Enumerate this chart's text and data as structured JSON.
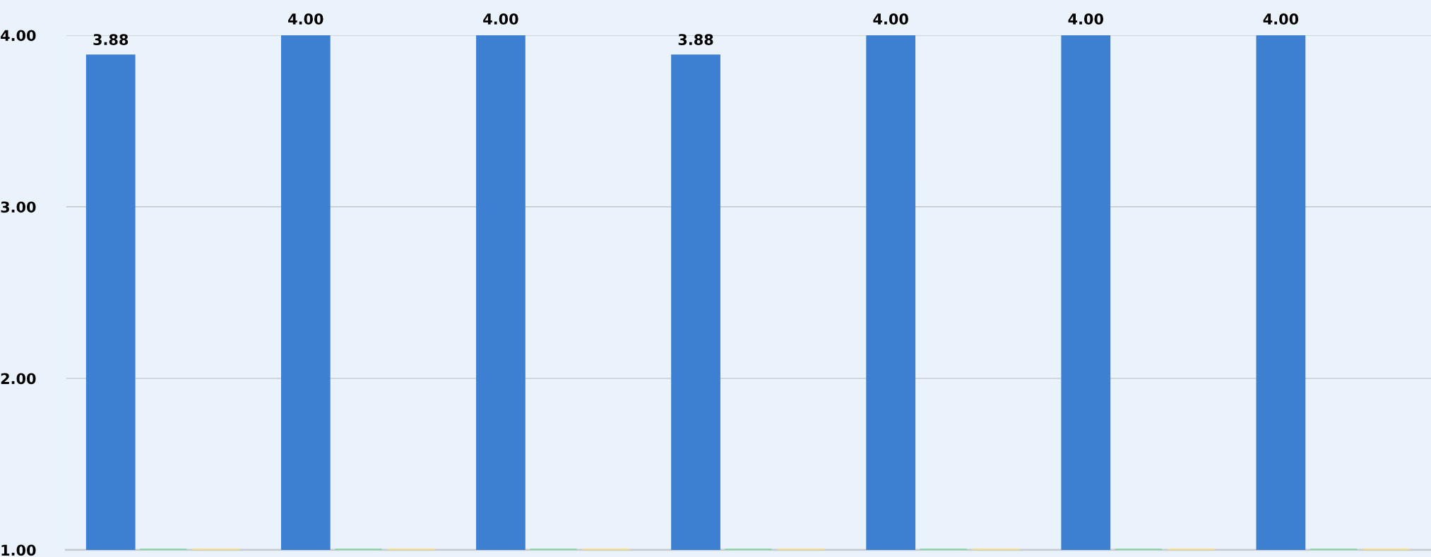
{
  "chart_data": {
    "type": "bar",
    "categories": [
      null,
      null,
      null,
      null,
      null,
      null,
      null
    ],
    "series": [
      {
        "color": "#3d7fd0",
        "values": [
          3.88,
          4.0,
          4.0,
          3.88,
          4.0,
          4.0,
          4.0
        ],
        "value_labels": [
          "3.88",
          "4.00",
          "4.00",
          "3.88",
          "4.00",
          "4.00",
          "4.00"
        ]
      },
      {
        "color": "#7fd8a0",
        "values": [
          1.0,
          1.0,
          1.0,
          1.0,
          1.0,
          1.0,
          1.0
        ]
      },
      {
        "color": "#f7e07a",
        "values": [
          1.0,
          1.0,
          1.0,
          1.0,
          1.0,
          1.0,
          1.0
        ]
      }
    ],
    "ylim": [
      1.0,
      4.0
    ],
    "yticks": [
      {
        "value": 1,
        "label": "1.00"
      },
      {
        "value": 2,
        "label": "2.00"
      },
      {
        "value": 3,
        "label": "3.00"
      },
      {
        "value": 4,
        "label": "4.00"
      }
    ],
    "grid": "y",
    "legend": false
  }
}
